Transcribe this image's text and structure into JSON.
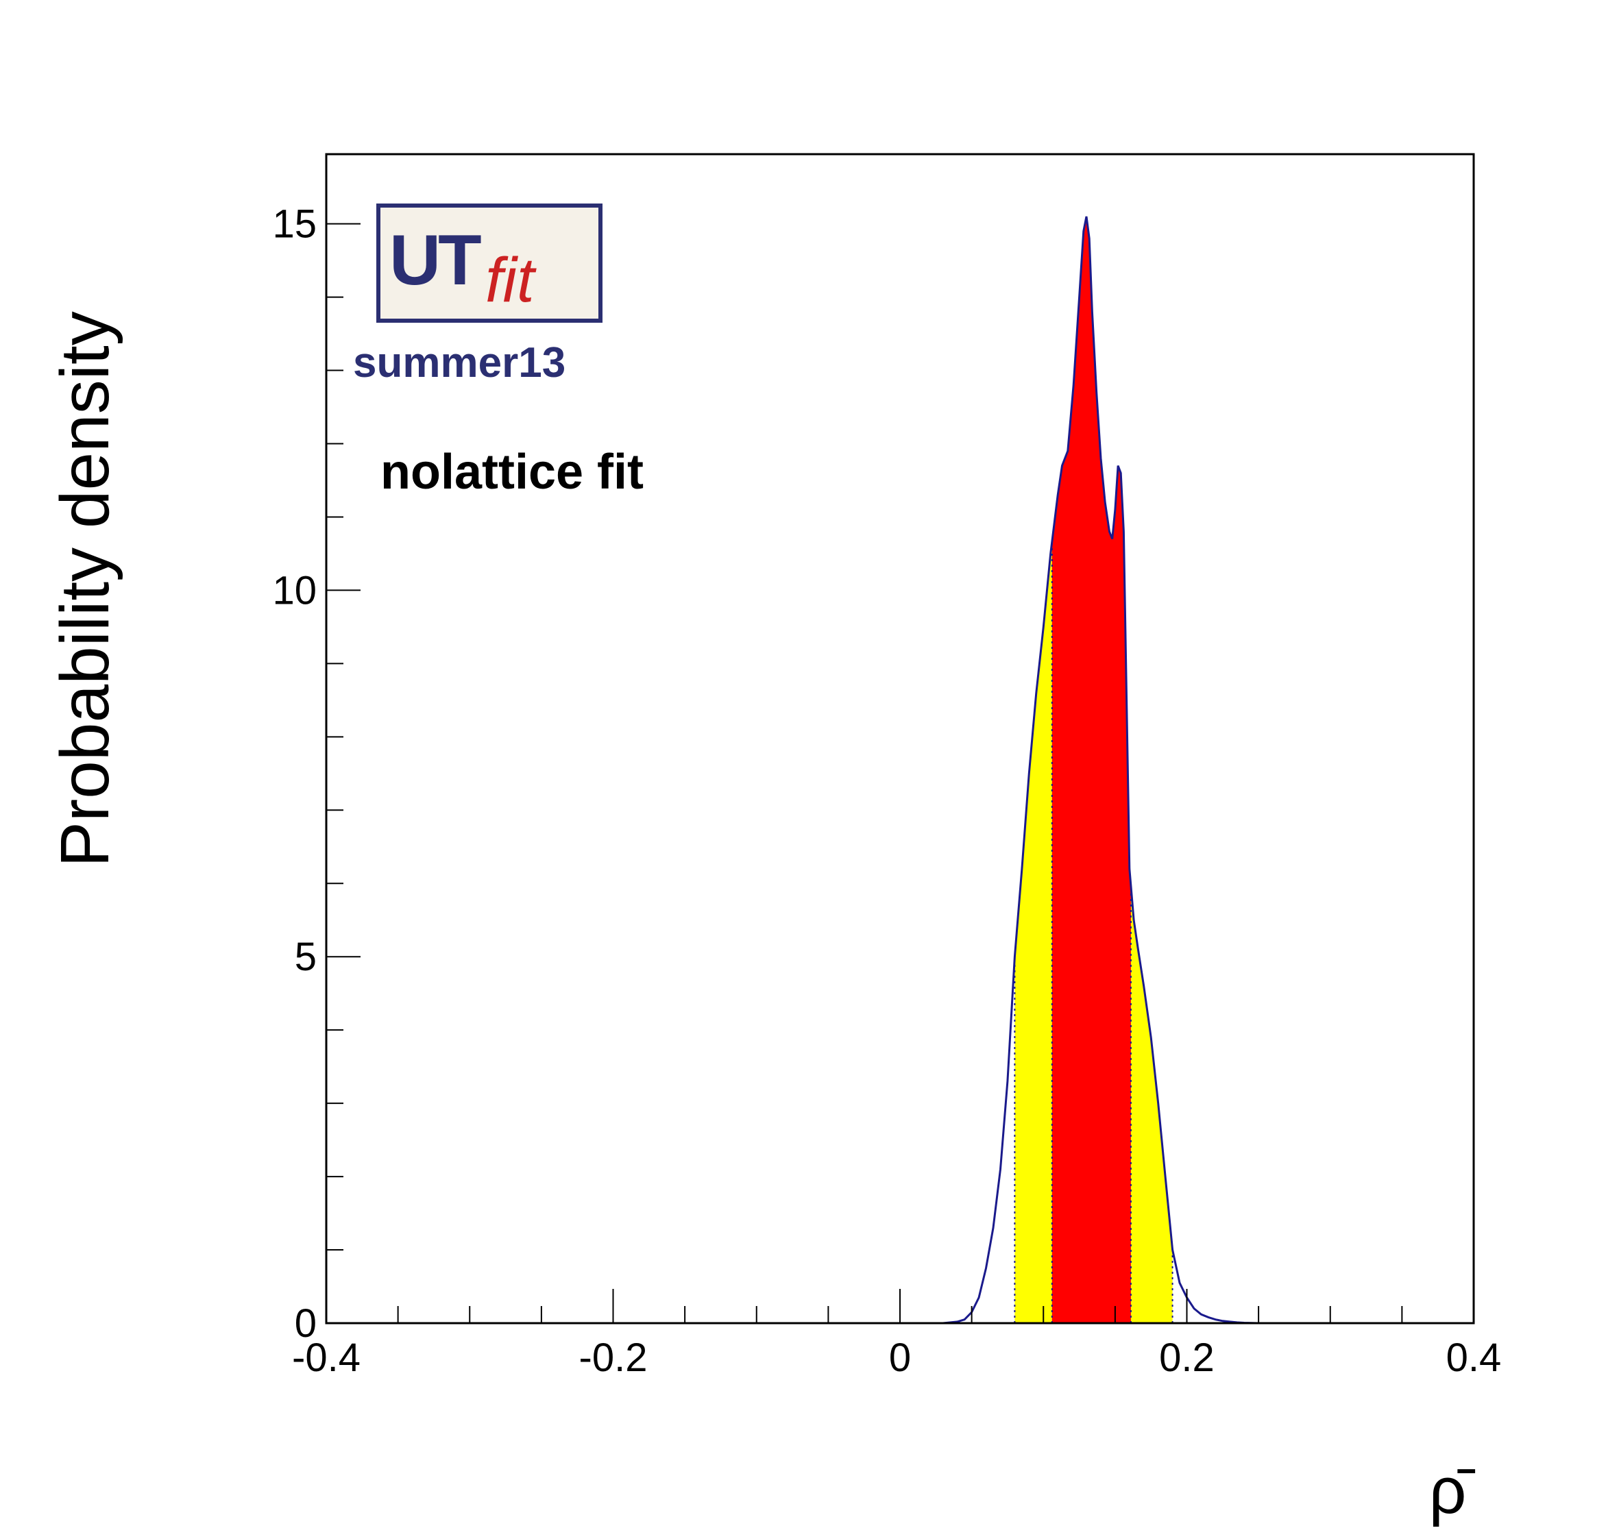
{
  "chart_data": {
    "type": "area",
    "title": "",
    "xlabel": "ρ̄",
    "ylabel": "Probability density",
    "xlim": [
      -0.4,
      0.4
    ],
    "ylim": [
      0,
      15.95
    ],
    "x_ticks": [
      -0.4,
      -0.2,
      0,
      0.2,
      0.4
    ],
    "x_tick_labels": [
      "-0.4",
      "-0.2",
      "0",
      "0.2",
      "0.4"
    ],
    "y_ticks": [
      0,
      5,
      10,
      15
    ],
    "y_tick_labels": [
      "0",
      "5",
      "10",
      "15"
    ],
    "grid": false,
    "legend": null,
    "annotations": [
      "summer13",
      "nolattice fit"
    ],
    "logo_text": "UTfit",
    "series": [
      {
        "x": [
          0.03,
          0.04,
          0.045,
          0.05,
          0.055,
          0.06,
          0.065,
          0.07,
          0.075,
          0.08,
          0.085,
          0.09,
          0.095,
          0.1,
          0.105,
          0.11,
          0.113,
          0.117,
          0.121,
          0.125,
          0.128,
          0.13,
          0.132,
          0.134,
          0.137,
          0.14,
          0.143,
          0.146,
          0.148,
          0.15,
          0.152,
          0.154,
          0.156,
          0.158,
          0.16,
          0.163,
          0.166,
          0.17,
          0.175,
          0.18,
          0.185,
          0.19,
          0.195,
          0.2,
          0.205,
          0.21,
          0.215,
          0.22,
          0.225,
          0.23,
          0.235,
          0.24,
          0.25
        ],
        "y": [
          0.0,
          0.02,
          0.05,
          0.15,
          0.35,
          0.75,
          1.3,
          2.1,
          3.3,
          5.0,
          6.2,
          7.5,
          8.6,
          9.5,
          10.5,
          11.3,
          11.7,
          11.9,
          12.8,
          14.0,
          14.9,
          15.1,
          14.8,
          13.8,
          12.7,
          11.8,
          11.2,
          10.8,
          10.7,
          11.1,
          11.7,
          11.6,
          10.8,
          8.5,
          6.2,
          5.5,
          5.1,
          4.6,
          3.9,
          3.0,
          2.0,
          1.0,
          0.55,
          0.35,
          0.2,
          0.12,
          0.08,
          0.05,
          0.03,
          0.02,
          0.01,
          0.005,
          0.0
        ]
      }
    ],
    "intervals": {
      "outer_range": [
        0.08,
        0.19
      ],
      "outer_color": "#ffff00",
      "inner_range": [
        0.106,
        0.161
      ],
      "inner_color": "#ff0000"
    },
    "line_color": "#1a1a8c",
    "annotation_color": "#2b2f72"
  }
}
